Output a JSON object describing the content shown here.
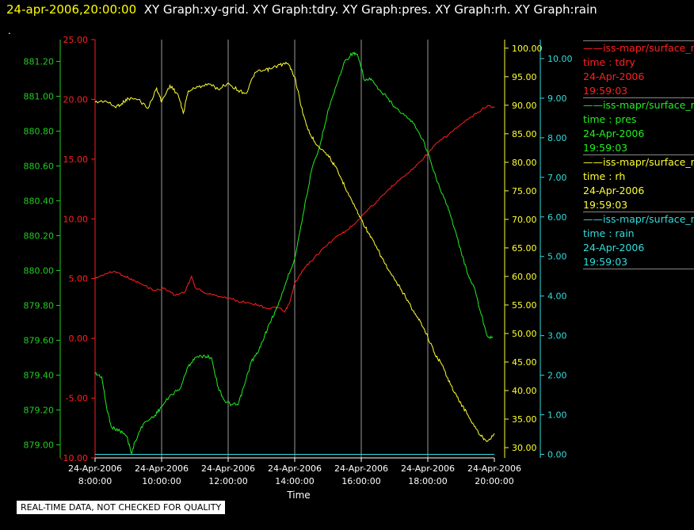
{
  "header": {
    "timestamp": "24-apr-2006,20:00:00",
    "graphs": "XY Graph:xy-grid.  XY Graph:tdry.  XY Graph:pres.  XY Graph:rh.  XY Graph:rain"
  },
  "dot": ".",
  "footer": "REAL-TIME DATA, NOT CHECKED FOR QUALITY",
  "legend": [
    {
      "name": "iss-mapr/surface_m",
      "var": "time : tdry",
      "date": "24-Apr-2006",
      "time": "19:59:03",
      "color": "#ff2020"
    },
    {
      "name": "iss-mapr/surface_m",
      "var": "time : pres",
      "date": "24-Apr-2006",
      "time": "19:59:03",
      "color": "#22ee22"
    },
    {
      "name": "iss-mapr/surface_m",
      "var": "time : rh",
      "date": "24-Apr-2006",
      "time": "19:59:03",
      "color": "#ffff33"
    },
    {
      "name": "iss-mapr/surface_m",
      "var": "time : rain",
      "date": "24-Apr-2006",
      "time": "19:59:03",
      "color": "#33dddd"
    }
  ],
  "chart_data": {
    "type": "line",
    "xlabel": "Time",
    "x_ticks": [
      {
        "date": "24-Apr-2006",
        "time": "8:00:00"
      },
      {
        "date": "24-Apr-2006",
        "time": "10:00:00"
      },
      {
        "date": "24-Apr-2006",
        "time": "12:00:00"
      },
      {
        "date": "24-Apr-2006",
        "time": "14:00:00"
      },
      {
        "date": "24-Apr-2006",
        "time": "16:00:00"
      },
      {
        "date": "24-Apr-2006",
        "time": "18:00:00"
      },
      {
        "date": "24-Apr-2006",
        "time": "20:00:00"
      }
    ],
    "xlim_hours": [
      8,
      20
    ],
    "vertical_grid": true,
    "axes": {
      "pres": {
        "color": "#22cc22",
        "ylim": [
          878.925,
          881.325
        ],
        "ticks": [
          "879.00",
          "879.20",
          "879.40",
          "879.60",
          "879.80",
          "880.00",
          "880.20",
          "880.40",
          "880.60",
          "880.80",
          "881.00",
          "881.20"
        ]
      },
      "tdry": {
        "color": "#ff2020",
        "ylim": [
          -10,
          25
        ],
        "ticks": [
          "-10.00",
          "-5.00",
          "0.00",
          "5.00",
          "10.00",
          "15.00",
          "20.00",
          "25.00"
        ]
      },
      "rh": {
        "color": "#ffff33",
        "ylim": [
          28.2,
          101.5
        ],
        "ticks": [
          "30.00",
          "35.00",
          "40.00",
          "45.00",
          "50.00",
          "55.00",
          "60.00",
          "65.00",
          "70.00",
          "75.00",
          "80.00",
          "85.00",
          "90.00",
          "95.00",
          "100.00"
        ]
      },
      "rain": {
        "color": "#33dddd",
        "ylim": [
          -0.09,
          10.48
        ],
        "ticks": [
          "0.00",
          "1.00",
          "2.00",
          "3.00",
          "4.00",
          "5.00",
          "6.00",
          "7.00",
          "8.00",
          "9.00",
          "10.00"
        ]
      }
    },
    "series": [
      {
        "var": "tdry",
        "color": "#ff2020",
        "points": [
          [
            8.0,
            5.0
          ],
          [
            8.3,
            5.4
          ],
          [
            8.6,
            5.6
          ],
          [
            8.9,
            5.2
          ],
          [
            9.2,
            4.8
          ],
          [
            9.5,
            4.4
          ],
          [
            9.8,
            4.0
          ],
          [
            10.1,
            4.2
          ],
          [
            10.4,
            3.6
          ],
          [
            10.7,
            3.9
          ],
          [
            10.9,
            5.2
          ],
          [
            11.0,
            4.3
          ],
          [
            11.3,
            3.8
          ],
          [
            11.6,
            3.6
          ],
          [
            12.0,
            3.4
          ],
          [
            12.3,
            3.1
          ],
          [
            12.6,
            3.0
          ],
          [
            12.9,
            2.8
          ],
          [
            13.2,
            2.5
          ],
          [
            13.5,
            2.6
          ],
          [
            13.7,
            2.2
          ],
          [
            13.85,
            3.0
          ],
          [
            14.0,
            4.6
          ],
          [
            14.3,
            5.9
          ],
          [
            14.6,
            6.8
          ],
          [
            15.0,
            7.9
          ],
          [
            15.3,
            8.6
          ],
          [
            15.6,
            9.1
          ],
          [
            15.9,
            9.9
          ],
          [
            16.2,
            10.8
          ],
          [
            16.5,
            11.5
          ],
          [
            16.8,
            12.4
          ],
          [
            17.1,
            13.2
          ],
          [
            17.4,
            13.8
          ],
          [
            17.7,
            14.6
          ],
          [
            18.0,
            15.5
          ],
          [
            18.3,
            16.4
          ],
          [
            18.6,
            17.0
          ],
          [
            18.9,
            17.7
          ],
          [
            19.2,
            18.3
          ],
          [
            19.5,
            18.9
          ],
          [
            19.8,
            19.5
          ],
          [
            20.0,
            19.3
          ]
        ]
      },
      {
        "var": "pres",
        "color": "#22ee22",
        "points": [
          [
            8.0,
            879.41
          ],
          [
            8.2,
            879.39
          ],
          [
            8.35,
            879.21
          ],
          [
            8.5,
            879.1
          ],
          [
            8.75,
            879.08
          ],
          [
            8.95,
            879.05
          ],
          [
            9.1,
            878.95
          ],
          [
            9.2,
            879.02
          ],
          [
            9.45,
            879.12
          ],
          [
            9.8,
            879.17
          ],
          [
            10.0,
            879.22
          ],
          [
            10.3,
            879.29
          ],
          [
            10.55,
            879.32
          ],
          [
            10.8,
            879.45
          ],
          [
            11.0,
            879.5
          ],
          [
            11.3,
            879.51
          ],
          [
            11.5,
            879.5
          ],
          [
            11.7,
            879.33
          ],
          [
            11.9,
            879.25
          ],
          [
            12.1,
            879.23
          ],
          [
            12.3,
            879.23
          ],
          [
            12.5,
            879.35
          ],
          [
            12.7,
            879.48
          ],
          [
            12.9,
            879.53
          ],
          [
            13.1,
            879.63
          ],
          [
            13.3,
            879.72
          ],
          [
            13.5,
            879.8
          ],
          [
            13.75,
            879.94
          ],
          [
            14.0,
            880.07
          ],
          [
            14.25,
            880.32
          ],
          [
            14.5,
            880.57
          ],
          [
            14.75,
            880.71
          ],
          [
            15.0,
            880.92
          ],
          [
            15.25,
            881.06
          ],
          [
            15.5,
            881.2
          ],
          [
            15.75,
            881.25
          ],
          [
            15.9,
            881.23
          ],
          [
            16.1,
            881.09
          ],
          [
            16.3,
            881.1
          ],
          [
            16.5,
            881.04
          ],
          [
            16.8,
            880.99
          ],
          [
            17.0,
            880.94
          ],
          [
            17.3,
            880.89
          ],
          [
            17.6,
            880.84
          ],
          [
            17.9,
            880.73
          ],
          [
            18.1,
            880.62
          ],
          [
            18.4,
            880.45
          ],
          [
            18.6,
            880.37
          ],
          [
            18.8,
            880.24
          ],
          [
            19.0,
            880.11
          ],
          [
            19.2,
            879.98
          ],
          [
            19.4,
            879.9
          ],
          [
            19.6,
            879.75
          ],
          [
            19.8,
            879.62
          ],
          [
            19.95,
            879.62
          ]
        ]
      },
      {
        "var": "rh",
        "color": "#ffff33",
        "points": [
          [
            8.0,
            90.5
          ],
          [
            8.3,
            90.8
          ],
          [
            8.6,
            89.7
          ],
          [
            8.8,
            90.3
          ],
          [
            9.0,
            91.2
          ],
          [
            9.3,
            91.0
          ],
          [
            9.6,
            89.5
          ],
          [
            9.85,
            93.0
          ],
          [
            10.0,
            90.6
          ],
          [
            10.25,
            93.5
          ],
          [
            10.5,
            91.8
          ],
          [
            10.65,
            88.6
          ],
          [
            10.8,
            92.5
          ],
          [
            11.1,
            93.2
          ],
          [
            11.4,
            93.8
          ],
          [
            11.7,
            92.8
          ],
          [
            12.0,
            93.9
          ],
          [
            12.3,
            92.6
          ],
          [
            12.55,
            92.1
          ],
          [
            12.8,
            95.7
          ],
          [
            13.1,
            96.1
          ],
          [
            13.3,
            96.4
          ],
          [
            13.55,
            97.1
          ],
          [
            13.8,
            97.3
          ],
          [
            14.0,
            95.0
          ],
          [
            14.2,
            89.7
          ],
          [
            14.35,
            86.5
          ],
          [
            14.5,
            84.5
          ],
          [
            14.7,
            82.9
          ],
          [
            15.0,
            81.3
          ],
          [
            15.2,
            79.4
          ],
          [
            15.4,
            77.1
          ],
          [
            15.6,
            74.7
          ],
          [
            15.8,
            72.3
          ],
          [
            16.0,
            70.0
          ],
          [
            16.2,
            67.8
          ],
          [
            16.4,
            65.7
          ],
          [
            16.6,
            63.5
          ],
          [
            16.8,
            61.3
          ],
          [
            17.0,
            59.4
          ],
          [
            17.2,
            57.7
          ],
          [
            17.4,
            55.8
          ],
          [
            17.6,
            53.5
          ],
          [
            17.8,
            51.9
          ],
          [
            18.0,
            49.4
          ],
          [
            18.2,
            46.6
          ],
          [
            18.4,
            44.8
          ],
          [
            18.6,
            42.2
          ],
          [
            18.8,
            39.6
          ],
          [
            19.0,
            37.7
          ],
          [
            19.2,
            35.8
          ],
          [
            19.4,
            33.7
          ],
          [
            19.6,
            32.0
          ],
          [
            19.8,
            31.2
          ],
          [
            20.0,
            32.5
          ]
        ]
      },
      {
        "var": "rain",
        "color": "#33dddd",
        "points": [
          [
            8.0,
            0.0
          ],
          [
            20.0,
            0.0
          ]
        ]
      }
    ]
  }
}
